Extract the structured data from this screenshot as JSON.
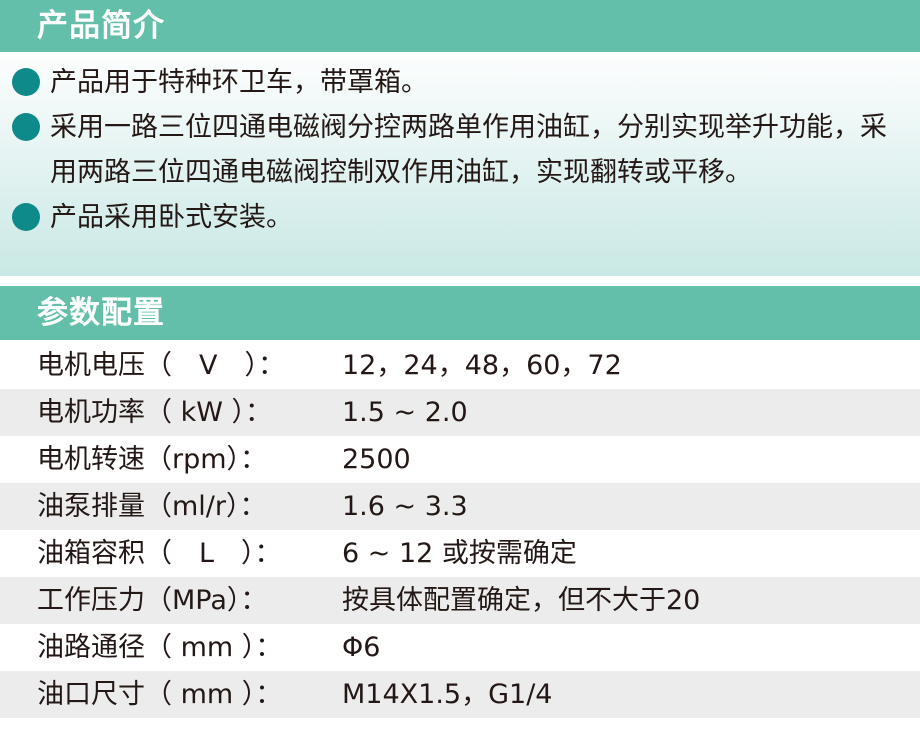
{
  "intro": {
    "title": "产品简介",
    "items": [
      "产品用于特种环卫车，带罩箱。",
      "采用一路三位四通电磁阀分控两路单作用油缸，分别实现举升功能，采用两路三位四通电磁阀控制双作用油缸，实现翻转或平移。",
      "产品采用卧式安装。"
    ]
  },
  "params": {
    "title": "参数配置",
    "rows": [
      {
        "label": "电机电压（　V　）：",
        "value": "12，24，48，60，72"
      },
      {
        "label": "电机功率（ kW ）：",
        "value": "1.5 ~ 2.0"
      },
      {
        "label": "电机转速（rpm）：",
        "value": "2500"
      },
      {
        "label": "油泵排量（ml/r）：",
        "value": "1.6 ~ 3.3"
      },
      {
        "label": "油箱容积（　L　）：",
        "value": "6 ~ 12 或按需确定"
      },
      {
        "label": "工作压力（MPa）：",
        "value": "按具体配置确定，但不大于20"
      },
      {
        "label": "油路通径（ mm ）：",
        "value": "Φ6"
      },
      {
        "label": "油口尺寸（ mm ）：",
        "value": "M14X1.5，G1/4"
      }
    ]
  },
  "colors": {
    "header": "#63bfaa",
    "bullet": "#0e8a8a"
  }
}
